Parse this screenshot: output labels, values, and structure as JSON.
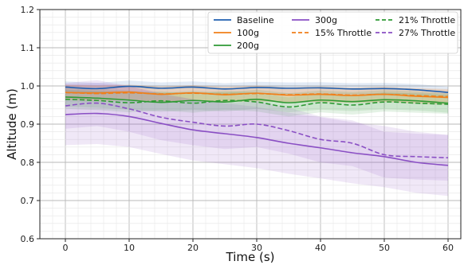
{
  "chart_data": {
    "type": "line",
    "xlabel": "Time (s)",
    "ylabel": "Altitude (m)",
    "xlim": [
      -4,
      62
    ],
    "ylim": [
      0.6,
      1.2
    ],
    "x_ticks": [
      "0",
      "10",
      "20",
      "30",
      "40",
      "50",
      "60"
    ],
    "y_ticks": [
      "0.6",
      "0.7",
      "0.8",
      "0.9",
      "1.0",
      "1.1",
      "1.2"
    ],
    "grid": "major and minor",
    "legend_position": "top-right",
    "series": [
      {
        "name": "Baseline",
        "color": "#1f5fb0",
        "style": "solid",
        "x": [
          0,
          5,
          10,
          15,
          20,
          25,
          30,
          35,
          40,
          45,
          50,
          55,
          60
        ],
        "y": [
          0.997,
          0.993,
          0.999,
          0.994,
          0.997,
          0.992,
          0.996,
          0.994,
          0.995,
          0.992,
          0.993,
          0.99,
          0.983
        ],
        "band": 0.015
      },
      {
        "name": "100g",
        "color": "#f07f1a",
        "style": "solid",
        "x": [
          0,
          5,
          10,
          15,
          20,
          25,
          30,
          35,
          40,
          45,
          50,
          55,
          60
        ],
        "y": [
          0.983,
          0.982,
          0.984,
          0.978,
          0.982,
          0.977,
          0.981,
          0.976,
          0.978,
          0.975,
          0.978,
          0.973,
          0.97
        ],
        "band": 0.02
      },
      {
        "name": "200g",
        "color": "#2e9a34",
        "style": "solid",
        "x": [
          0,
          5,
          10,
          15,
          20,
          25,
          30,
          35,
          40,
          45,
          50,
          55,
          60
        ],
        "y": [
          0.971,
          0.968,
          0.963,
          0.957,
          0.962,
          0.958,
          0.965,
          0.956,
          0.963,
          0.959,
          0.964,
          0.961,
          0.955
        ],
        "band": 0.025
      },
      {
        "name": "300g",
        "color": "#8a4fc4",
        "style": "solid",
        "x": [
          0,
          5,
          10,
          15,
          20,
          25,
          30,
          35,
          40,
          45,
          50,
          55,
          60
        ],
        "y": [
          0.925,
          0.928,
          0.92,
          0.902,
          0.885,
          0.875,
          0.865,
          0.85,
          0.838,
          0.825,
          0.815,
          0.8,
          0.792
        ],
        "band": 0.08
      },
      {
        "name": "15% Throttle",
        "color": "#f07f1a",
        "style": "dashed",
        "x": [
          0,
          5,
          10,
          15,
          20,
          25,
          30,
          35,
          40,
          45,
          50,
          55,
          60
        ],
        "y": [
          0.983,
          0.98,
          0.982,
          0.979,
          0.981,
          0.978,
          0.98,
          0.977,
          0.979,
          0.976,
          0.978,
          0.975,
          0.972
        ],
        "band": 0.02
      },
      {
        "name": "21% Throttle",
        "color": "#2e9a34",
        "style": "dashed",
        "x": [
          0,
          5,
          10,
          15,
          20,
          25,
          30,
          35,
          40,
          45,
          50,
          55,
          60
        ],
        "y": [
          0.965,
          0.962,
          0.956,
          0.961,
          0.955,
          0.962,
          0.958,
          0.945,
          0.956,
          0.95,
          0.958,
          0.955,
          0.952
        ],
        "band": 0.025
      },
      {
        "name": "27% Throttle",
        "color": "#8a4fc4",
        "style": "dashed",
        "x": [
          0,
          5,
          10,
          15,
          20,
          25,
          30,
          35,
          40,
          45,
          50,
          55,
          60
        ],
        "y": [
          0.948,
          0.955,
          0.94,
          0.918,
          0.905,
          0.895,
          0.9,
          0.883,
          0.86,
          0.85,
          0.82,
          0.815,
          0.812
        ],
        "band": 0.06
      }
    ]
  }
}
